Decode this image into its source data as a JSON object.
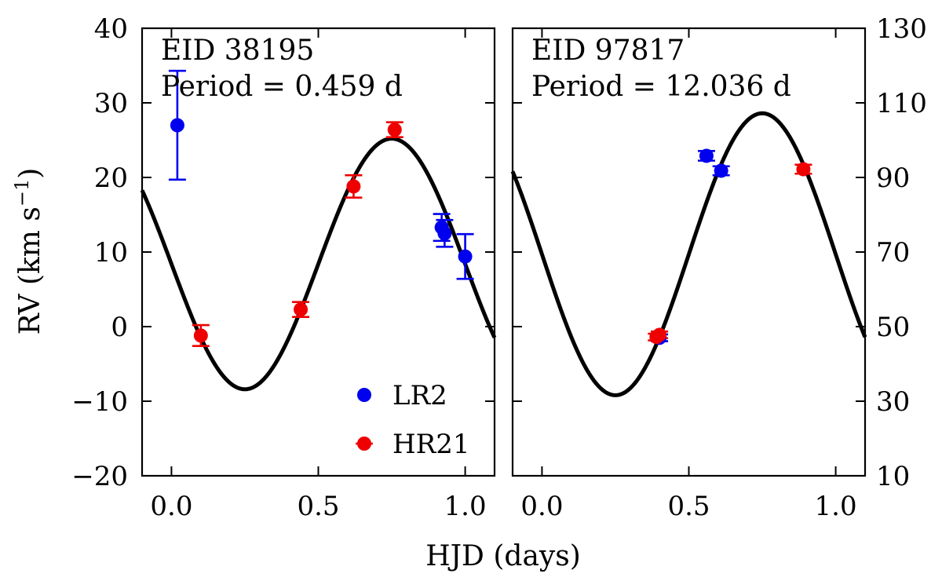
{
  "figure": {
    "xlabel": "HJD (days)",
    "ylabel_main": "RV (km s",
    "ylabel_exp": "−1",
    "ylabel_close": ")"
  },
  "colors": {
    "LR2": "#0000ee",
    "HR21": "#ee0000",
    "curve": "#000000"
  },
  "chart_data": [
    {
      "type": "scatter",
      "annotation_lines": [
        "EID 38195",
        "Period = 0.459 d"
      ],
      "xlim": [
        -0.1,
        1.1
      ],
      "ylim": [
        -20,
        40
      ],
      "xticks": [
        0.0,
        0.5,
        1.0
      ],
      "xtick_labels": [
        "0.0",
        "0.5",
        "1.0"
      ],
      "yticks": [
        -20,
        -10,
        0,
        10,
        20,
        30,
        40
      ],
      "ytick_labels": [
        "−20",
        "−10",
        "0",
        "10",
        "20",
        "30",
        "40"
      ],
      "yaxis_side": "left",
      "model": {
        "gamma": 8.4,
        "amplitude": 16.8
      },
      "legend": {
        "position": "bottom-right",
        "entries": [
          "LR2",
          "HR21"
        ]
      },
      "series": [
        {
          "name": "LR2",
          "points": [
            {
              "x": 0.02,
              "y": 27.0,
              "err": 7.3
            },
            {
              "x": 0.92,
              "y": 13.3,
              "err": 1.8
            },
            {
              "x": 0.93,
              "y": 12.5,
              "err": 1.8
            },
            {
              "x": 1.0,
              "y": 9.4,
              "err": 3.0
            }
          ]
        },
        {
          "name": "HR21",
          "points": [
            {
              "x": 0.1,
              "y": -1.2,
              "err": 1.4
            },
            {
              "x": 0.44,
              "y": 2.3,
              "err": 1.0
            },
            {
              "x": 0.62,
              "y": 18.8,
              "err": 1.5
            },
            {
              "x": 0.76,
              "y": 26.4,
              "err": 1.0
            }
          ]
        }
      ]
    },
    {
      "type": "scatter",
      "annotation_lines": [
        "EID 97817",
        "Period = 12.036 d"
      ],
      "xlim": [
        -0.1,
        1.1
      ],
      "ylim": [
        10,
        130
      ],
      "xticks": [
        0.0,
        0.5,
        1.0
      ],
      "xtick_labels": [
        "0.0",
        "0.5",
        "1.0"
      ],
      "yticks": [
        10,
        30,
        50,
        70,
        90,
        110,
        130
      ],
      "ytick_labels": [
        "10",
        "30",
        "50",
        "70",
        "90",
        "110",
        "130"
      ],
      "yaxis_side": "right",
      "model": {
        "gamma": 69.4,
        "amplitude": 37.8
      },
      "series": [
        {
          "name": "LR2",
          "points": [
            {
              "x": 0.4,
              "y": 47.0,
              "err": 0.9
            },
            {
              "x": 0.56,
              "y": 95.8,
              "err": 1.3
            },
            {
              "x": 0.61,
              "y": 91.8,
              "err": 1.2
            }
          ]
        },
        {
          "name": "HR21",
          "points": [
            {
              "x": 0.39,
              "y": 47.2,
              "err": 0.9
            },
            {
              "x": 0.4,
              "y": 47.8,
              "err": 0.9
            },
            {
              "x": 0.89,
              "y": 92.2,
              "err": 1.2
            }
          ]
        }
      ]
    }
  ]
}
